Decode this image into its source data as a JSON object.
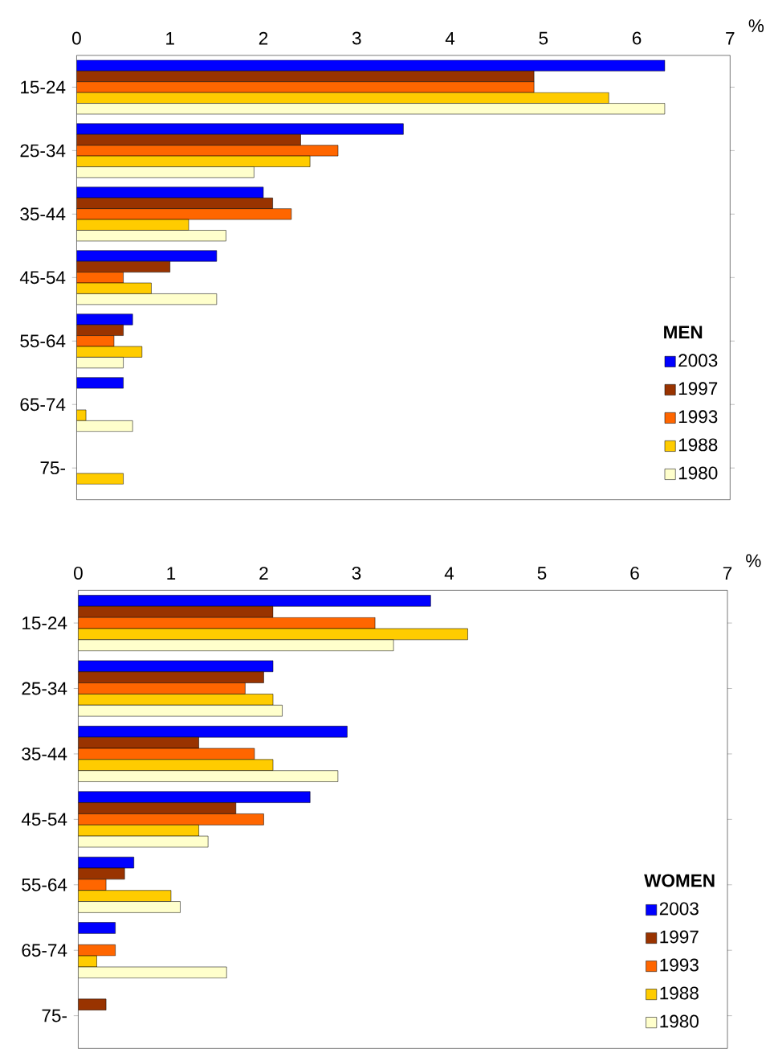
{
  "chart_data": [
    {
      "type": "bar",
      "orientation": "horizontal",
      "categories": [
        "15-24",
        "25-34",
        "35-44",
        "45-54",
        "55-64",
        "65-74",
        "75-"
      ],
      "xlabel": "%",
      "legend_title": "MEN",
      "legend": "bottom right",
      "grid": false,
      "xlim": [
        0,
        7
      ],
      "xticks": [
        0,
        1,
        2,
        3,
        4,
        5,
        6,
        7
      ],
      "series": [
        {
          "name": "2003",
          "color": "#0000ff",
          "values": [
            6.3,
            3.5,
            2.0,
            1.5,
            0.6,
            0.5,
            null
          ]
        },
        {
          "name": "1997",
          "color": "#993300",
          "values": [
            4.9,
            2.4,
            2.1,
            1.0,
            0.5,
            null,
            null
          ]
        },
        {
          "name": "1993",
          "color": "#ff6600",
          "values": [
            4.9,
            2.8,
            2.3,
            0.5,
            0.4,
            null,
            null
          ]
        },
        {
          "name": "1988",
          "color": "#ffcc00",
          "values": [
            5.7,
            2.5,
            1.2,
            0.8,
            0.7,
            0.1,
            0.5
          ]
        },
        {
          "name": "1980",
          "color": "#ffffcc",
          "values": [
            6.3,
            1.9,
            1.6,
            1.5,
            0.5,
            0.6,
            null
          ]
        }
      ]
    },
    {
      "type": "bar",
      "orientation": "horizontal",
      "categories": [
        "15-24",
        "25-34",
        "35-44",
        "45-54",
        "55-64",
        "65-74",
        "75-"
      ],
      "xlabel": "%",
      "legend_title": "WOMEN",
      "legend": "bottom right",
      "grid": false,
      "xlim": [
        0,
        7
      ],
      "xticks": [
        0,
        1,
        2,
        3,
        4,
        5,
        6,
        7
      ],
      "series": [
        {
          "name": "2003",
          "color": "#0000ff",
          "values": [
            3.8,
            2.1,
            2.9,
            2.5,
            0.6,
            0.4,
            null
          ]
        },
        {
          "name": "1997",
          "color": "#993300",
          "values": [
            2.1,
            2.0,
            1.3,
            1.7,
            0.5,
            null,
            0.3
          ]
        },
        {
          "name": "1993",
          "color": "#ff6600",
          "values": [
            3.2,
            1.8,
            1.9,
            2.0,
            0.3,
            0.4,
            null
          ]
        },
        {
          "name": "1988",
          "color": "#ffcc00",
          "values": [
            4.2,
            2.1,
            2.1,
            1.3,
            1.0,
            0.2,
            null
          ]
        },
        {
          "name": "1980",
          "color": "#ffffcc",
          "values": [
            3.4,
            2.2,
            2.8,
            1.4,
            1.1,
            1.6,
            null
          ]
        }
      ]
    }
  ]
}
